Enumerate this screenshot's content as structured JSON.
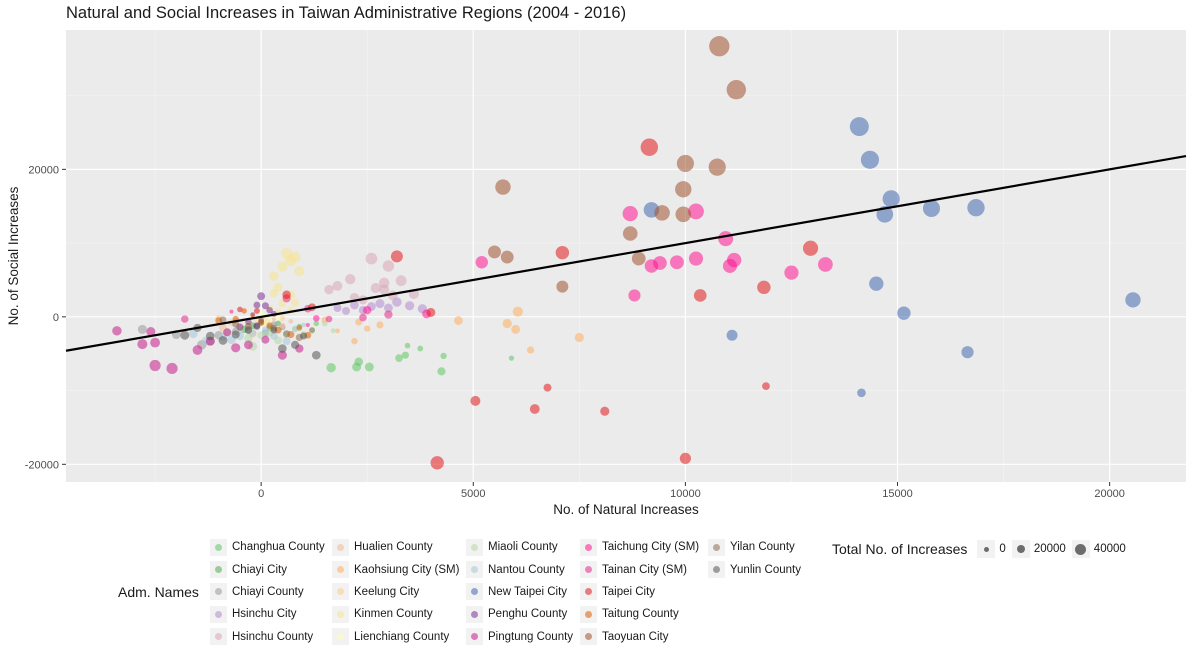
{
  "chart_data": {
    "type": "scatter",
    "title": "Natural and Social Increases in Taiwan Administrative Regions (2004 - 2016)",
    "xlabel": "No. of Natural Increases",
    "ylabel": "No. of Social Increases",
    "xlim": [
      -4600,
      21800
    ],
    "ylim": [
      -22400,
      38900
    ],
    "x_ticks": [
      0,
      5000,
      10000,
      15000,
      20000
    ],
    "y_ticks": [
      -20000,
      0,
      20000
    ],
    "grid": true,
    "background": "#ebebeb",
    "point_opacity": 0.55,
    "regression_line": {
      "x": [
        -4600,
        21800
      ],
      "y": [
        -4600,
        21800
      ]
    },
    "regression_line_y": [
      -4600,
      21800
    ],
    "legend": {
      "title": "Adm. Names",
      "size_title": "Total No. of Increases",
      "size_values": [
        "0",
        "20000",
        "40000"
      ]
    },
    "series": [
      {
        "name": "Changhua County",
        "color": "#5ec962",
        "points": [
          [
            1650,
            -6900
          ],
          [
            2250,
            -6800
          ],
          [
            2550,
            -6800
          ],
          [
            3250,
            -5600
          ],
          [
            3400,
            -5200
          ],
          [
            3450,
            -3900
          ],
          [
            3750,
            -4300
          ],
          [
            4300,
            -5300
          ],
          [
            4250,
            -7400
          ],
          [
            5900,
            -5600
          ],
          [
            2300,
            -6100
          ],
          [
            900,
            -1300
          ],
          [
            1300,
            -900
          ]
        ]
      },
      {
        "name": "Chiayi City",
        "color": "#4daf4a",
        "points": [
          [
            -400,
            -1700
          ],
          [
            -200,
            -1200
          ],
          [
            0,
            -800
          ],
          [
            200,
            -1500
          ],
          [
            400,
            -900
          ]
        ]
      },
      {
        "name": "Chiayi County",
        "color": "#999999",
        "points": [
          [
            -2800,
            -1700
          ],
          [
            -2000,
            -2400
          ],
          [
            -1400,
            -3800
          ],
          [
            -1200,
            -3300
          ],
          [
            -1000,
            -2500
          ],
          [
            -600,
            -2000
          ],
          [
            -300,
            -1800
          ],
          [
            100,
            -2200
          ],
          [
            300,
            -1000
          ],
          [
            500,
            -1400
          ]
        ]
      },
      {
        "name": "Hsinchu City",
        "color": "#b48bce",
        "points": [
          [
            1800,
            1200
          ],
          [
            2200,
            1600
          ],
          [
            2600,
            1400
          ],
          [
            2800,
            1800
          ],
          [
            3000,
            1200
          ],
          [
            3200,
            2000
          ],
          [
            3500,
            1500
          ],
          [
            3800,
            1100
          ],
          [
            2400,
            900
          ],
          [
            2000,
            800
          ]
        ]
      },
      {
        "name": "Hsinchu County",
        "color": "#d9a6b8",
        "points": [
          [
            1800,
            4200
          ],
          [
            2100,
            5100
          ],
          [
            2600,
            7900
          ],
          [
            2900,
            4600
          ],
          [
            3000,
            6900
          ],
          [
            3300,
            4900
          ],
          [
            3600,
            3100
          ],
          [
            2200,
            2600
          ],
          [
            2700,
            3900
          ],
          [
            3100,
            2900
          ],
          [
            2400,
            2300
          ],
          [
            1600,
            3700
          ],
          [
            2900,
            3700
          ]
        ]
      },
      {
        "name": "Hualien County",
        "color": "#f4b896",
        "points": [
          [
            -900,
            -1500
          ],
          [
            -600,
            -600
          ],
          [
            -300,
            -1100
          ],
          [
            -100,
            -400
          ],
          [
            150,
            -700
          ],
          [
            300,
            -300
          ],
          [
            500,
            -1200
          ],
          [
            700,
            -600
          ]
        ]
      },
      {
        "name": "Kaohsiung City (SM)",
        "color": "#fdae61",
        "points": [
          [
            4650,
            -500
          ],
          [
            5800,
            -900
          ],
          [
            6000,
            -1700
          ],
          [
            6050,
            700
          ],
          [
            6350,
            -4500
          ],
          [
            7500,
            -2800
          ],
          [
            2800,
            -1100
          ],
          [
            2200,
            -3300
          ],
          [
            2500,
            -1600
          ],
          [
            1800,
            -1900
          ],
          [
            2300,
            -700
          ],
          [
            1500,
            -400
          ]
        ]
      },
      {
        "name": "Keelung City",
        "color": "#fdcc8a",
        "points": [
          [
            -1000,
            -200
          ],
          [
            -700,
            -800
          ],
          [
            -500,
            -1400
          ],
          [
            -200,
            -2300
          ],
          [
            100,
            -600
          ],
          [
            300,
            -1800
          ],
          [
            500,
            -200
          ]
        ]
      },
      {
        "name": "Kinmen County",
        "color": "#f6e48f",
        "points": [
          [
            300,
            5500
          ],
          [
            500,
            6800
          ],
          [
            700,
            7600
          ],
          [
            600,
            8600
          ],
          [
            800,
            8100
          ],
          [
            400,
            4000
          ],
          [
            600,
            2600
          ],
          [
            700,
            3000
          ],
          [
            500,
            1800
          ],
          [
            300,
            3200
          ],
          [
            200,
            1200
          ],
          [
            800,
            1900
          ],
          [
            400,
            700
          ],
          [
            700,
            900
          ],
          [
            900,
            6200
          ]
        ]
      },
      {
        "name": "Lienchiang County",
        "color": "#ffffb3",
        "points": [
          [
            -300,
            -600
          ],
          [
            -100,
            -300
          ],
          [
            0,
            -100
          ],
          [
            100,
            100
          ],
          [
            200,
            -400
          ],
          [
            300,
            200
          ],
          [
            -200,
            200
          ],
          [
            0,
            500
          ],
          [
            100,
            -700
          ],
          [
            400,
            -200
          ]
        ]
      },
      {
        "name": "Miaoli County",
        "color": "#b5d9a5",
        "points": [
          [
            -800,
            -2100
          ],
          [
            -500,
            -1800
          ],
          [
            -300,
            -2900
          ],
          [
            -200,
            -4000
          ],
          [
            0,
            -2500
          ],
          [
            200,
            -2200
          ],
          [
            400,
            -3200
          ],
          [
            600,
            -2400
          ],
          [
            800,
            -1700
          ],
          [
            1000,
            -2400
          ],
          [
            1200,
            -1900
          ],
          [
            1500,
            -900
          ],
          [
            1700,
            -1900
          ]
        ]
      },
      {
        "name": "Nantou County",
        "color": "#a6c8d9",
        "points": [
          [
            -1600,
            -2300
          ],
          [
            -1300,
            -3300
          ],
          [
            -900,
            -2700
          ],
          [
            -700,
            -3100
          ],
          [
            -500,
            -2600
          ],
          [
            -200,
            -2200
          ],
          [
            100,
            -1800
          ],
          [
            300,
            -2600
          ],
          [
            600,
            -3300
          ],
          [
            800,
            -1600
          ],
          [
            1000,
            -1100
          ]
        ]
      },
      {
        "name": "New Taipei City",
        "color": "#4169b1",
        "points": [
          [
            9200,
            14500
          ],
          [
            11100,
            -2500
          ],
          [
            14100,
            25800
          ],
          [
            14350,
            21300
          ],
          [
            14500,
            4500
          ],
          [
            14150,
            -10300
          ],
          [
            14700,
            13900
          ],
          [
            14850,
            16000
          ],
          [
            15150,
            500
          ],
          [
            15800,
            14700
          ],
          [
            16650,
            -4800
          ],
          [
            16850,
            14800
          ],
          [
            20550,
            2300
          ]
        ]
      },
      {
        "name": "Penghu County",
        "color": "#7b3294",
        "points": [
          [
            -500,
            -1400
          ],
          [
            -300,
            -700
          ],
          [
            -100,
            -1200
          ],
          [
            0,
            2800
          ],
          [
            100,
            1500
          ],
          [
            300,
            400
          ],
          [
            -200,
            300
          ],
          [
            0,
            -600
          ],
          [
            -100,
            1600
          ],
          [
            200,
            900
          ]
        ]
      },
      {
        "name": "Pingtung County",
        "color": "#c51b8a",
        "points": [
          [
            -3400,
            -1900
          ],
          [
            -2800,
            -3700
          ],
          [
            -2600,
            -2000
          ],
          [
            -2500,
            -3500
          ],
          [
            -2500,
            -6600
          ],
          [
            -2100,
            -7000
          ],
          [
            -1500,
            -4500
          ],
          [
            -1200,
            -3300
          ],
          [
            -800,
            -2100
          ],
          [
            -600,
            -4200
          ],
          [
            -300,
            -3800
          ],
          [
            100,
            -3100
          ],
          [
            500,
            -5200
          ],
          [
            900,
            -4300
          ]
        ]
      },
      {
        "name": "Taichung City (SM)",
        "color": "#ff1493",
        "points": [
          [
            5200,
            7400
          ],
          [
            8700,
            14000
          ],
          [
            8800,
            2900
          ],
          [
            9200,
            6900
          ],
          [
            9400,
            7300
          ],
          [
            9800,
            7400
          ],
          [
            10250,
            14300
          ],
          [
            10250,
            7900
          ],
          [
            10950,
            10600
          ],
          [
            11050,
            6900
          ],
          [
            11150,
            7700
          ],
          [
            12500,
            6000
          ],
          [
            13300,
            7100
          ],
          [
            3900,
            400
          ],
          [
            1300,
            -200
          ],
          [
            2500,
            900
          ],
          [
            1100,
            -1100
          ]
        ]
      },
      {
        "name": "Tainan City (SM)",
        "color": "#e7298a",
        "points": [
          [
            -1800,
            -300
          ],
          [
            -700,
            700
          ],
          [
            600,
            2500
          ],
          [
            1100,
            1100
          ],
          [
            1600,
            -300
          ],
          [
            2400,
            -100
          ],
          [
            3000,
            300
          ]
        ]
      },
      {
        "name": "Taipei City",
        "color": "#e41a1c",
        "points": [
          [
            9150,
            23000
          ],
          [
            10350,
            2900
          ],
          [
            11850,
            4000
          ],
          [
            12950,
            9300
          ],
          [
            7100,
            8700
          ],
          [
            3200,
            8200
          ],
          [
            4000,
            600
          ],
          [
            5050,
            -11400
          ],
          [
            6450,
            -12500
          ],
          [
            6750,
            -9600
          ],
          [
            8100,
            -12800
          ],
          [
            10000,
            -19200
          ],
          [
            11900,
            -9400
          ],
          [
            4150,
            -19800
          ],
          [
            600,
            3000
          ],
          [
            1200,
            1300
          ],
          [
            -500,
            1000
          ],
          [
            -100,
            800
          ]
        ]
      },
      {
        "name": "Taitung County",
        "color": "#d95f02",
        "points": [
          [
            -1000,
            -500
          ],
          [
            -600,
            -300
          ],
          [
            -400,
            800
          ],
          [
            -200,
            200
          ],
          [
            0,
            -800
          ],
          [
            200,
            -1200
          ],
          [
            400,
            -1800
          ],
          [
            700,
            -2400
          ],
          [
            900,
            -1500
          ],
          [
            1100,
            -2500
          ]
        ]
      },
      {
        "name": "Taoyuan City",
        "color": "#a0522d",
        "points": [
          [
            5700,
            17600
          ],
          [
            5500,
            8800
          ],
          [
            5800,
            8100
          ],
          [
            7100,
            4100
          ],
          [
            8700,
            11300
          ],
          [
            8900,
            7900
          ],
          [
            9450,
            14100
          ],
          [
            9950,
            17300
          ],
          [
            9950,
            13900
          ],
          [
            10000,
            20800
          ],
          [
            10750,
            20300
          ],
          [
            10800,
            36700
          ],
          [
            11200,
            30800
          ]
        ]
      },
      {
        "name": "Yilan County",
        "color": "#8c6d50",
        "points": [
          [
            -900,
            -400
          ],
          [
            -600,
            -1000
          ],
          [
            -300,
            -1300
          ],
          [
            0,
            -400
          ],
          [
            300,
            -1500
          ],
          [
            600,
            -2300
          ],
          [
            900,
            -2800
          ],
          [
            1200,
            -1800
          ]
        ]
      },
      {
        "name": "Yunlin County",
        "color": "#555555",
        "points": [
          [
            -1800,
            -2500
          ],
          [
            -1500,
            -1500
          ],
          [
            -1200,
            -2600
          ],
          [
            -900,
            -3200
          ],
          [
            -600,
            -2400
          ],
          [
            -300,
            -1800
          ],
          [
            -100,
            -1300
          ],
          [
            300,
            -1800
          ],
          [
            500,
            -4300
          ],
          [
            800,
            -3800
          ],
          [
            1300,
            -5200
          ],
          [
            1000,
            -2600
          ]
        ]
      }
    ]
  }
}
